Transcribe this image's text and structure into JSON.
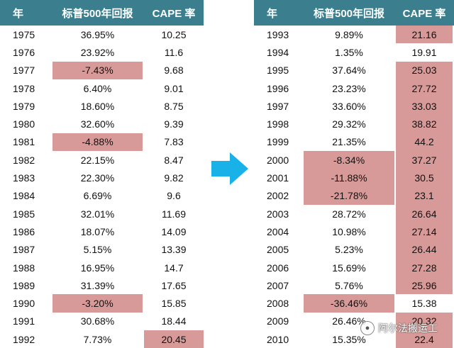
{
  "headers": {
    "year": "年",
    "return": "标普500年回报",
    "cape": "CAPE 率"
  },
  "colors": {
    "header_bg": "#3b7f8f",
    "highlight": "#d89a98",
    "arrow": "#19b2e8"
  },
  "left_table": [
    {
      "year": "1975",
      "ret": "36.95%",
      "cape": "10.25",
      "ret_hl": false,
      "cape_hl": false
    },
    {
      "year": "1976",
      "ret": "23.92%",
      "cape": "11.6",
      "ret_hl": false,
      "cape_hl": false
    },
    {
      "year": "1977",
      "ret": "-7.43%",
      "cape": "9.68",
      "ret_hl": true,
      "cape_hl": false
    },
    {
      "year": "1978",
      "ret": "6.40%",
      "cape": "9.01",
      "ret_hl": false,
      "cape_hl": false
    },
    {
      "year": "1979",
      "ret": "18.60%",
      "cape": "8.75",
      "ret_hl": false,
      "cape_hl": false
    },
    {
      "year": "1980",
      "ret": "32.60%",
      "cape": "9.39",
      "ret_hl": false,
      "cape_hl": false
    },
    {
      "year": "1981",
      "ret": "-4.88%",
      "cape": "7.83",
      "ret_hl": true,
      "cape_hl": false
    },
    {
      "year": "1982",
      "ret": "22.15%",
      "cape": "8.47",
      "ret_hl": false,
      "cape_hl": false
    },
    {
      "year": "1983",
      "ret": "22.30%",
      "cape": "9.82",
      "ret_hl": false,
      "cape_hl": false
    },
    {
      "year": "1984",
      "ret": "6.69%",
      "cape": "9.6",
      "ret_hl": false,
      "cape_hl": false
    },
    {
      "year": "1985",
      "ret": "32.01%",
      "cape": "11.69",
      "ret_hl": false,
      "cape_hl": false
    },
    {
      "year": "1986",
      "ret": "18.07%",
      "cape": "14.09",
      "ret_hl": false,
      "cape_hl": false
    },
    {
      "year": "1987",
      "ret": "5.15%",
      "cape": "13.39",
      "ret_hl": false,
      "cape_hl": false
    },
    {
      "year": "1988",
      "ret": "16.95%",
      "cape": "14.7",
      "ret_hl": false,
      "cape_hl": false
    },
    {
      "year": "1989",
      "ret": "31.39%",
      "cape": "17.65",
      "ret_hl": false,
      "cape_hl": false
    },
    {
      "year": "1990",
      "ret": "-3.20%",
      "cape": "15.85",
      "ret_hl": true,
      "cape_hl": false
    },
    {
      "year": "1991",
      "ret": "30.68%",
      "cape": "18.44",
      "ret_hl": false,
      "cape_hl": false
    },
    {
      "year": "1992",
      "ret": "7.73%",
      "cape": "20.45",
      "ret_hl": false,
      "cape_hl": true
    }
  ],
  "right_table": [
    {
      "year": "1993",
      "ret": "9.89%",
      "cape": "21.16",
      "ret_hl": false,
      "cape_hl": true
    },
    {
      "year": "1994",
      "ret": "1.35%",
      "cape": "19.91",
      "ret_hl": false,
      "cape_hl": false
    },
    {
      "year": "1995",
      "ret": "37.64%",
      "cape": "25.03",
      "ret_hl": false,
      "cape_hl": true
    },
    {
      "year": "1996",
      "ret": "23.23%",
      "cape": "27.72",
      "ret_hl": false,
      "cape_hl": true
    },
    {
      "year": "1997",
      "ret": "33.60%",
      "cape": "33.03",
      "ret_hl": false,
      "cape_hl": true
    },
    {
      "year": "1998",
      "ret": "29.32%",
      "cape": "38.82",
      "ret_hl": false,
      "cape_hl": true
    },
    {
      "year": "1999",
      "ret": "21.35%",
      "cape": "44.2",
      "ret_hl": false,
      "cape_hl": true
    },
    {
      "year": "2000",
      "ret": "-8.34%",
      "cape": "37.27",
      "ret_hl": true,
      "cape_hl": true
    },
    {
      "year": "2001",
      "ret": "-11.88%",
      "cape": "30.5",
      "ret_hl": true,
      "cape_hl": true
    },
    {
      "year": "2002",
      "ret": "-21.78%",
      "cape": "23.1",
      "ret_hl": true,
      "cape_hl": true
    },
    {
      "year": "2003",
      "ret": "28.72%",
      "cape": "26.64",
      "ret_hl": false,
      "cape_hl": true
    },
    {
      "year": "2004",
      "ret": "10.98%",
      "cape": "27.14",
      "ret_hl": false,
      "cape_hl": true
    },
    {
      "year": "2005",
      "ret": "5.23%",
      "cape": "26.44",
      "ret_hl": false,
      "cape_hl": true
    },
    {
      "year": "2006",
      "ret": "15.69%",
      "cape": "27.28",
      "ret_hl": false,
      "cape_hl": true
    },
    {
      "year": "2007",
      "ret": "5.76%",
      "cape": "25.96",
      "ret_hl": false,
      "cape_hl": true
    },
    {
      "year": "2008",
      "ret": "-36.46%",
      "cape": "15.38",
      "ret_hl": true,
      "cape_hl": false
    },
    {
      "year": "2009",
      "ret": "26.46%",
      "cape": "20.32",
      "ret_hl": false,
      "cape_hl": true
    },
    {
      "year": "2010",
      "ret": "15.35%",
      "cape": "22.4",
      "ret_hl": false,
      "cape_hl": true
    }
  ],
  "watermark": {
    "text": "阿尔法搬运工",
    "icon": "wechat-logo-icon"
  }
}
